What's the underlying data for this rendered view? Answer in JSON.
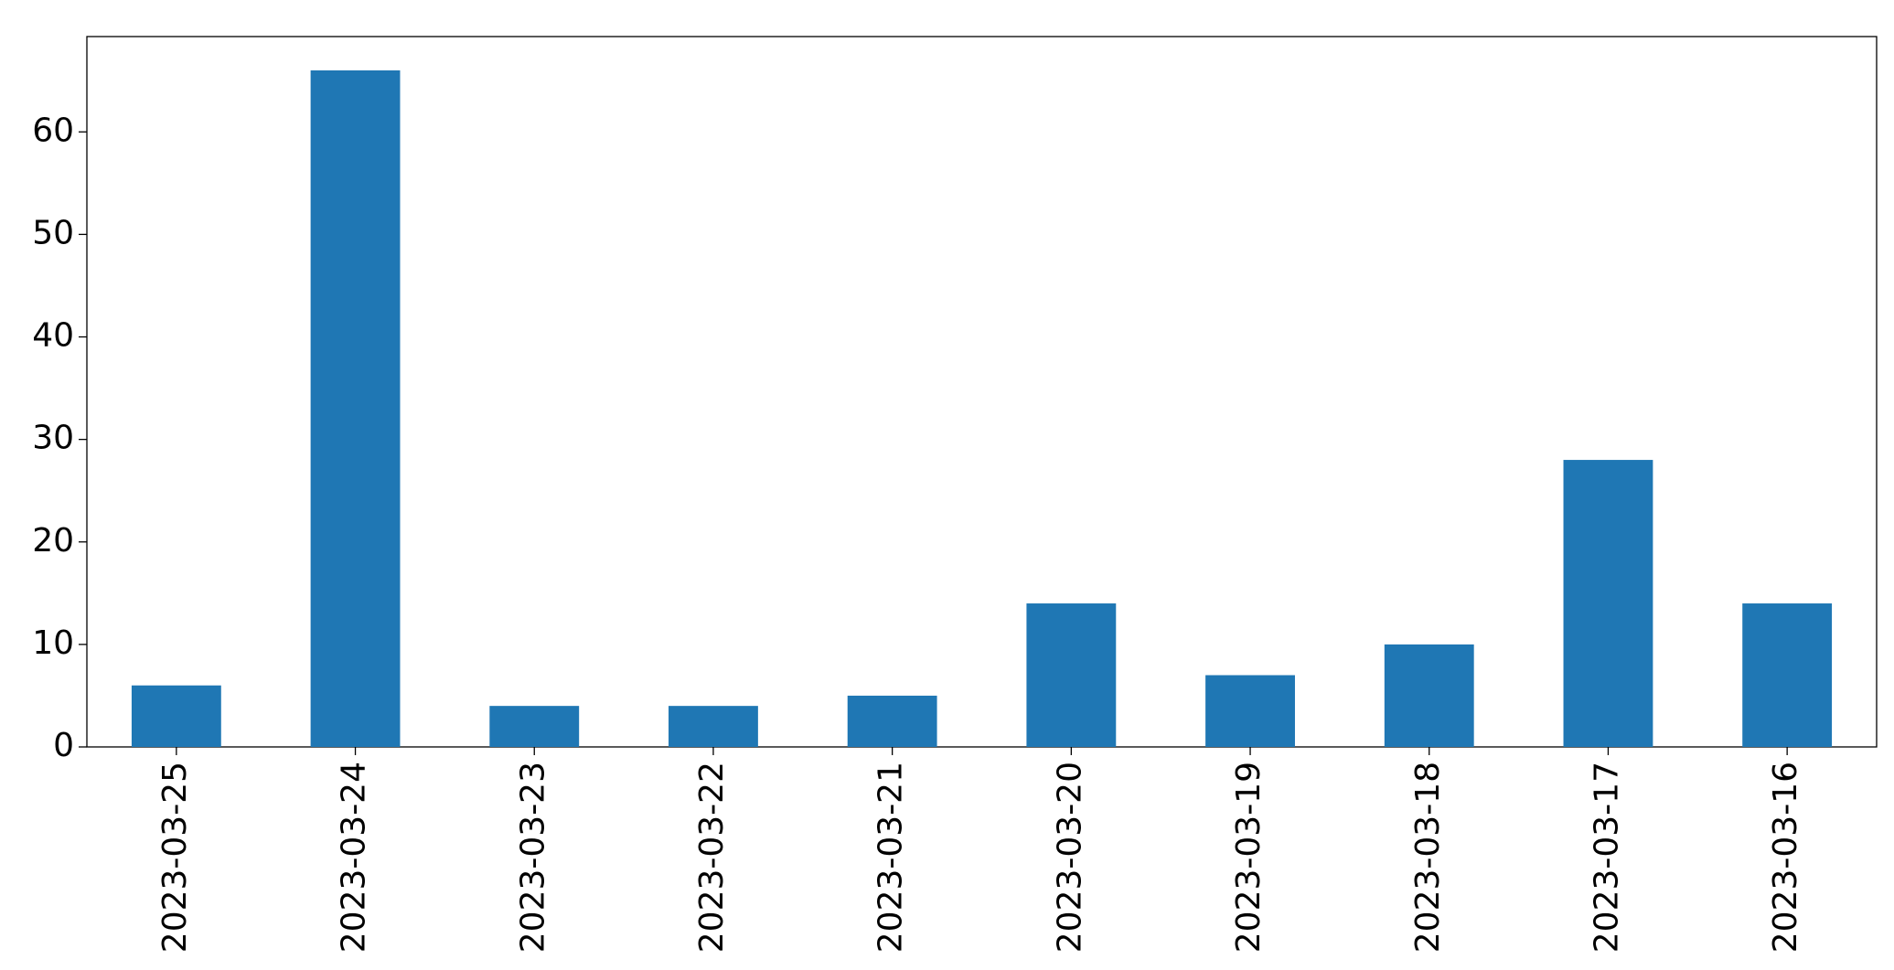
{
  "chart_data": {
    "type": "bar",
    "categories": [
      "2023-03-25",
      "2023-03-24",
      "2023-03-23",
      "2023-03-22",
      "2023-03-21",
      "2023-03-20",
      "2023-03-19",
      "2023-03-18",
      "2023-03-17",
      "2023-03-16"
    ],
    "values": [
      6,
      66,
      4,
      4,
      5,
      14,
      7,
      10,
      28,
      14
    ],
    "color": "#1f77b4",
    "ylim": [
      0,
      69.3
    ],
    "yticks": [
      0,
      10,
      20,
      30,
      40,
      50,
      60
    ],
    "grid": false
  }
}
